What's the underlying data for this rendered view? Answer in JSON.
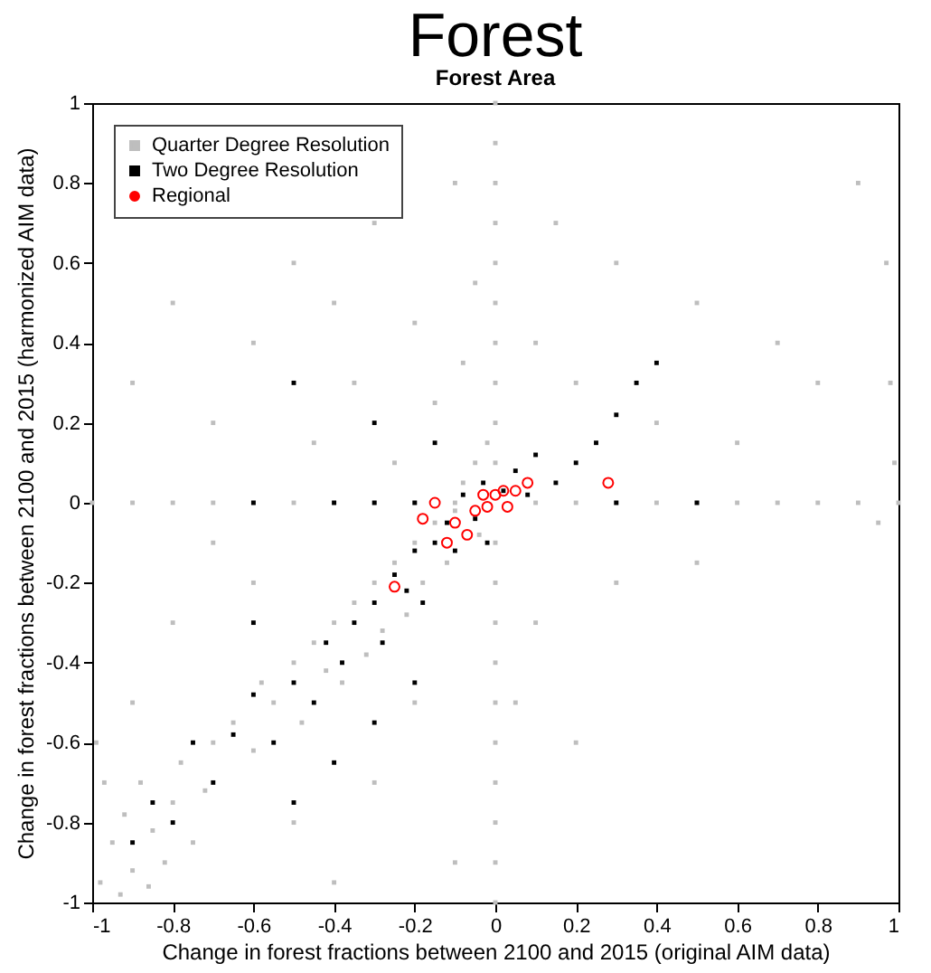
{
  "chart_data": {
    "type": "scatter",
    "title": "Forest",
    "subtitle": "Forest Area",
    "xlabel": "Change in forest fractions between 2100 and 2015 (original AIM data)",
    "ylabel": "Change in forest fractions between 2100 and 2015 (harmonized AIM data)",
    "xlim": [
      -1,
      1
    ],
    "ylim": [
      -1,
      1
    ],
    "xticks": [
      -1,
      -0.8,
      -0.6,
      -0.4,
      -0.2,
      0,
      0.2,
      0.4,
      0.6,
      0.8,
      1
    ],
    "yticks": [
      -1,
      -0.8,
      -0.6,
      -0.4,
      -0.2,
      0,
      0.2,
      0.4,
      0.6,
      0.8,
      1
    ],
    "grid": false,
    "legend": "top left",
    "series": [
      {
        "name": "Quarter Degree Resolution",
        "color": "#bebebe",
        "marker": "square",
        "x": [
          -0.98,
          -0.95,
          -0.92,
          -0.9,
          -0.88,
          -0.85,
          -0.82,
          -0.8,
          -0.78,
          -0.75,
          -0.72,
          -0.7,
          -0.97,
          -0.99,
          -0.93,
          -0.86,
          -0.65,
          -0.6,
          -0.58,
          -0.55,
          -0.5,
          -0.48,
          -0.45,
          -0.42,
          -0.4,
          -0.38,
          -0.35,
          -0.32,
          -0.3,
          -0.28,
          -0.25,
          -0.22,
          -0.2,
          -0.18,
          -0.15,
          -0.12,
          -0.1,
          -0.08,
          -0.05,
          -0.04,
          -0.02,
          -1,
          -0.9,
          -0.8,
          -0.7,
          -0.6,
          -0.5,
          -0.4,
          -0.3,
          -0.2,
          -0.1,
          0.1,
          0.2,
          0.3,
          0.4,
          0.5,
          0.6,
          0.7,
          0.8,
          0.9,
          1,
          0,
          0,
          0,
          0,
          0,
          0,
          0,
          0,
          0,
          0,
          0,
          0,
          0,
          0,
          0,
          0,
          0,
          0,
          0,
          0,
          -0.9,
          -0.8,
          -0.7,
          -0.6,
          -0.5,
          -0.45,
          -0.4,
          -0.35,
          -0.3,
          -0.25,
          -0.2,
          -0.15,
          -0.1,
          -0.08,
          -0.05,
          -0.6,
          -0.8,
          -0.9,
          -0.5,
          -0.3,
          -0.2,
          -0.1,
          -0.4,
          -0.7,
          0.1,
          0.2,
          0.3,
          0.4,
          0.5,
          0.6,
          0.7,
          0.8,
          0.9,
          0.97,
          0.98,
          0.99,
          0.95,
          0.1,
          0.2,
          0.3,
          0.5,
          0.05,
          0.15
        ],
        "values": [
          -0.95,
          -0.85,
          -0.78,
          -0.92,
          -0.7,
          -0.82,
          -0.9,
          -0.75,
          -0.65,
          -0.85,
          -0.72,
          -0.6,
          -0.7,
          -0.6,
          -0.98,
          -0.96,
          -0.55,
          -0.62,
          -0.45,
          -0.5,
          -0.4,
          -0.55,
          -0.35,
          -0.42,
          -0.3,
          -0.45,
          -0.25,
          -0.38,
          -0.2,
          -0.32,
          -0.15,
          -0.28,
          -0.1,
          -0.2,
          -0.05,
          -0.15,
          -0.02,
          0.05,
          0.1,
          -0.08,
          0.15,
          0,
          0,
          0,
          0,
          0,
          0,
          0,
          0,
          0,
          0,
          0,
          0,
          0,
          0,
          0,
          0,
          0,
          0,
          0,
          0,
          -1,
          -0.9,
          -0.8,
          -0.7,
          -0.6,
          -0.5,
          -0.4,
          -0.3,
          -0.2,
          -0.1,
          0.1,
          0.2,
          0.3,
          0.4,
          0.5,
          0.6,
          0.7,
          0.8,
          0.9,
          1,
          0.3,
          0.5,
          0.2,
          0.4,
          0.6,
          0.15,
          0.5,
          0.3,
          0.7,
          0.1,
          0.45,
          0.25,
          0.8,
          0.35,
          0.55,
          -0.2,
          -0.3,
          -0.5,
          -0.8,
          -0.7,
          -0.5,
          -0.9,
          -0.95,
          -0.1,
          0.4,
          0.3,
          0.6,
          0.2,
          0.5,
          0.15,
          0.4,
          0.3,
          0.8,
          0.6,
          0.3,
          0.1,
          -0.05,
          -0.3,
          -0.6,
          -0.2,
          -0.15,
          -0.5,
          0.7
        ]
      },
      {
        "name": "Two Degree Resolution",
        "color": "#000000",
        "marker": "square",
        "x": [
          -0.9,
          -0.85,
          -0.8,
          -0.75,
          -0.7,
          -0.65,
          -0.6,
          -0.55,
          -0.5,
          -0.45,
          -0.42,
          -0.38,
          -0.35,
          -0.3,
          -0.28,
          -0.25,
          -0.22,
          -0.2,
          -0.18,
          -0.15,
          -0.12,
          -0.1,
          -0.08,
          -0.05,
          -0.03,
          -0.02,
          0.02,
          0.05,
          0.08,
          0.1,
          0.15,
          0.2,
          0.25,
          0.3,
          0.35,
          0.4,
          -0.6,
          -0.4,
          -0.3,
          -0.2,
          0.3,
          0.5,
          -0.5,
          -0.3,
          -0.15,
          -0.6,
          -0.4,
          -0.3,
          -0.5,
          -0.2
        ],
        "values": [
          -0.85,
          -0.75,
          -0.8,
          -0.6,
          -0.7,
          -0.58,
          -0.48,
          -0.6,
          -0.45,
          -0.5,
          -0.35,
          -0.4,
          -0.3,
          -0.25,
          -0.35,
          -0.18,
          -0.22,
          -0.12,
          -0.25,
          -0.1,
          -0.05,
          -0.12,
          0.02,
          -0.04,
          0.05,
          -0.1,
          0.03,
          0.08,
          0.02,
          0.12,
          0.05,
          0.1,
          0.15,
          0.22,
          0.3,
          0.35,
          0,
          0,
          0,
          0,
          0,
          0,
          0.3,
          0.2,
          0.15,
          -0.3,
          -0.65,
          -0.55,
          -0.75,
          -0.45
        ]
      },
      {
        "name": "Regional",
        "color": "#ff0000",
        "marker": "circle",
        "x": [
          -0.25,
          0.28,
          -0.18,
          -0.15,
          -0.1,
          -0.05,
          -0.03,
          0,
          0.02,
          0.05,
          0.08,
          -0.07,
          -0.02,
          0.03,
          -0.12
        ],
        "values": [
          -0.21,
          0.05,
          -0.04,
          0,
          -0.05,
          -0.02,
          0.02,
          0.02,
          0.03,
          0.03,
          0.05,
          -0.08,
          -0.01,
          -0.01,
          -0.1
        ]
      }
    ]
  }
}
